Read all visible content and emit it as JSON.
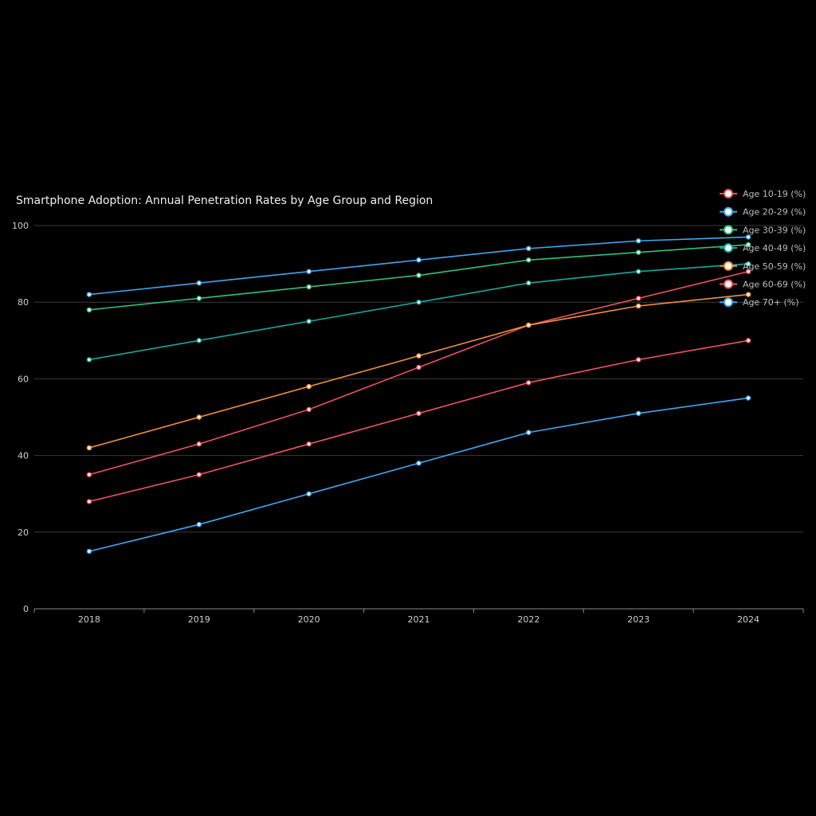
{
  "chart_data": {
    "type": "line",
    "title": "Smartphone Adoption: Annual Penetration Rates by Age Group and Region",
    "xlabel": "",
    "ylabel": "",
    "categories": [
      "2018",
      "2019",
      "2020",
      "2021",
      "2022",
      "2023",
      "2024"
    ],
    "ylim": [
      0,
      100
    ],
    "yticks": [
      "0",
      "20",
      "40",
      "60",
      "80",
      "100"
    ],
    "grid": true,
    "legend_position": "top-right",
    "series": [
      {
        "name": "Age 10-19 (%)",
        "color": "#f0545c",
        "values": [
          35,
          43,
          52,
          63,
          74,
          81,
          88
        ]
      },
      {
        "name": "Age 20-29 (%)",
        "color": "#3ea8f0",
        "values": [
          82,
          85,
          88,
          91,
          94,
          96,
          97
        ]
      },
      {
        "name": "Age 30-39 (%)",
        "color": "#2fc27e",
        "values": [
          78,
          81,
          84,
          87,
          91,
          93,
          95
        ]
      },
      {
        "name": "Age 40-49 (%)",
        "color": "#17a89a",
        "values": [
          65,
          70,
          75,
          80,
          85,
          88,
          90
        ]
      },
      {
        "name": "Age 50-59 (%)",
        "color": "#f2913a",
        "values": [
          42,
          50,
          58,
          66,
          74,
          79,
          82
        ]
      },
      {
        "name": "Age 60-69 (%)",
        "color": "#f0545c",
        "values": [
          28,
          35,
          43,
          51,
          59,
          65,
          70
        ]
      },
      {
        "name": "Age 70+ (%)",
        "color": "#3ea8f0",
        "values": [
          15,
          22,
          30,
          38,
          46,
          51,
          55
        ]
      }
    ]
  }
}
